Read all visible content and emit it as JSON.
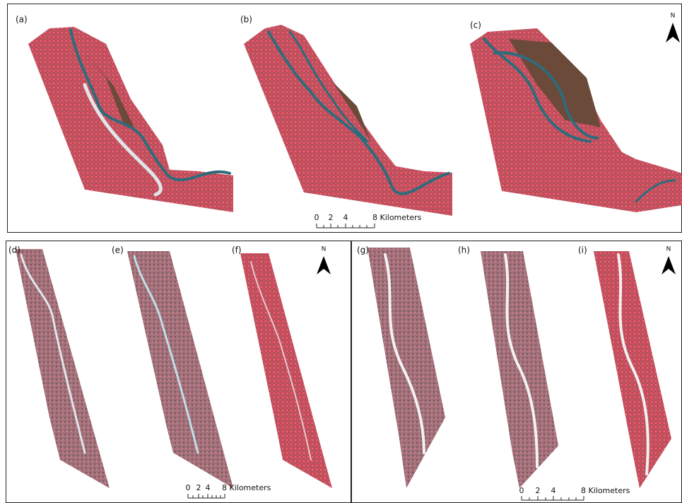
{
  "panel_labels": [
    "(a)",
    "(b)",
    "(c)",
    "(d)",
    "(e)",
    "(f)",
    "(g)",
    "(h)",
    "(i)"
  ],
  "north_labels": [
    "N",
    "N",
    "N"
  ],
  "scale_bars": [
    [
      "0",
      "2",
      "4",
      "8 Kilometers"
    ],
    [
      "0",
      "2",
      "4",
      "8 Kilometers"
    ],
    [
      "0",
      "2",
      "4",
      "8 Kilometers"
    ]
  ]
}
